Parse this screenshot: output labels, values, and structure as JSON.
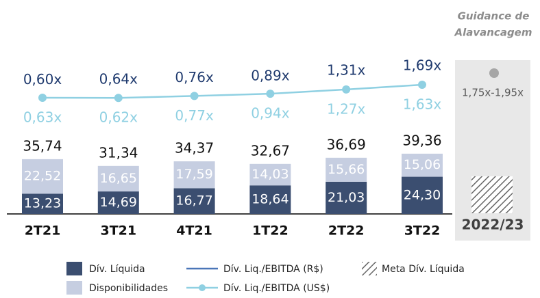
{
  "chart_data": {
    "type": "bar",
    "categories": [
      "2T21",
      "3T21",
      "4T21",
      "1T22",
      "2T22",
      "3T22"
    ],
    "series": [
      {
        "name": "Dív. Líquida",
        "color": "#3b4e70",
        "values": [
          13.23,
          14.69,
          16.77,
          18.64,
          21.03,
          24.3
        ],
        "value_labels": [
          "13,23",
          "14,69",
          "16,77",
          "18,64",
          "21,03",
          "24,30"
        ]
      },
      {
        "name": "Disponibilidades",
        "color": "#c6cee1",
        "values": [
          22.52,
          16.65,
          17.59,
          14.03,
          15.66,
          15.06
        ],
        "value_labels": [
          "22,52",
          "16,65",
          "17,59",
          "14,03",
          "15,66",
          "15,06"
        ]
      }
    ],
    "totals": {
      "values": [
        35.74,
        31.34,
        34.37,
        32.67,
        36.69,
        39.36
      ],
      "value_labels": [
        "35,74",
        "31,34",
        "34,37",
        "32,67",
        "36,69",
        "39,36"
      ]
    },
    "ratios": [
      {
        "name": "Dív. Liq./EBITDA (R$)",
        "color": "#1f3a6e",
        "values": [
          0.6,
          0.64,
          0.76,
          0.89,
          1.31,
          1.69
        ],
        "value_labels": [
          "0,60x",
          "0,64x",
          "0,76x",
          "0,89x",
          "1,31x",
          "1,69x"
        ]
      },
      {
        "name": "Dív. Liq./EBITDA (US$)",
        "color": "#8fd0e2",
        "values": [
          0.63,
          0.62,
          0.77,
          0.94,
          1.27,
          1.63
        ],
        "value_labels": [
          "0,63x",
          "0,62x",
          "0,77x",
          "0,94x",
          "1,27x",
          "1,63x"
        ]
      }
    ],
    "guidance": {
      "title_line1": "Guidance de",
      "title_line2": "Alavancagem",
      "range": "1,75x-1,95x",
      "period": "2022/23",
      "legend": "Meta Dív. Líquida"
    }
  }
}
